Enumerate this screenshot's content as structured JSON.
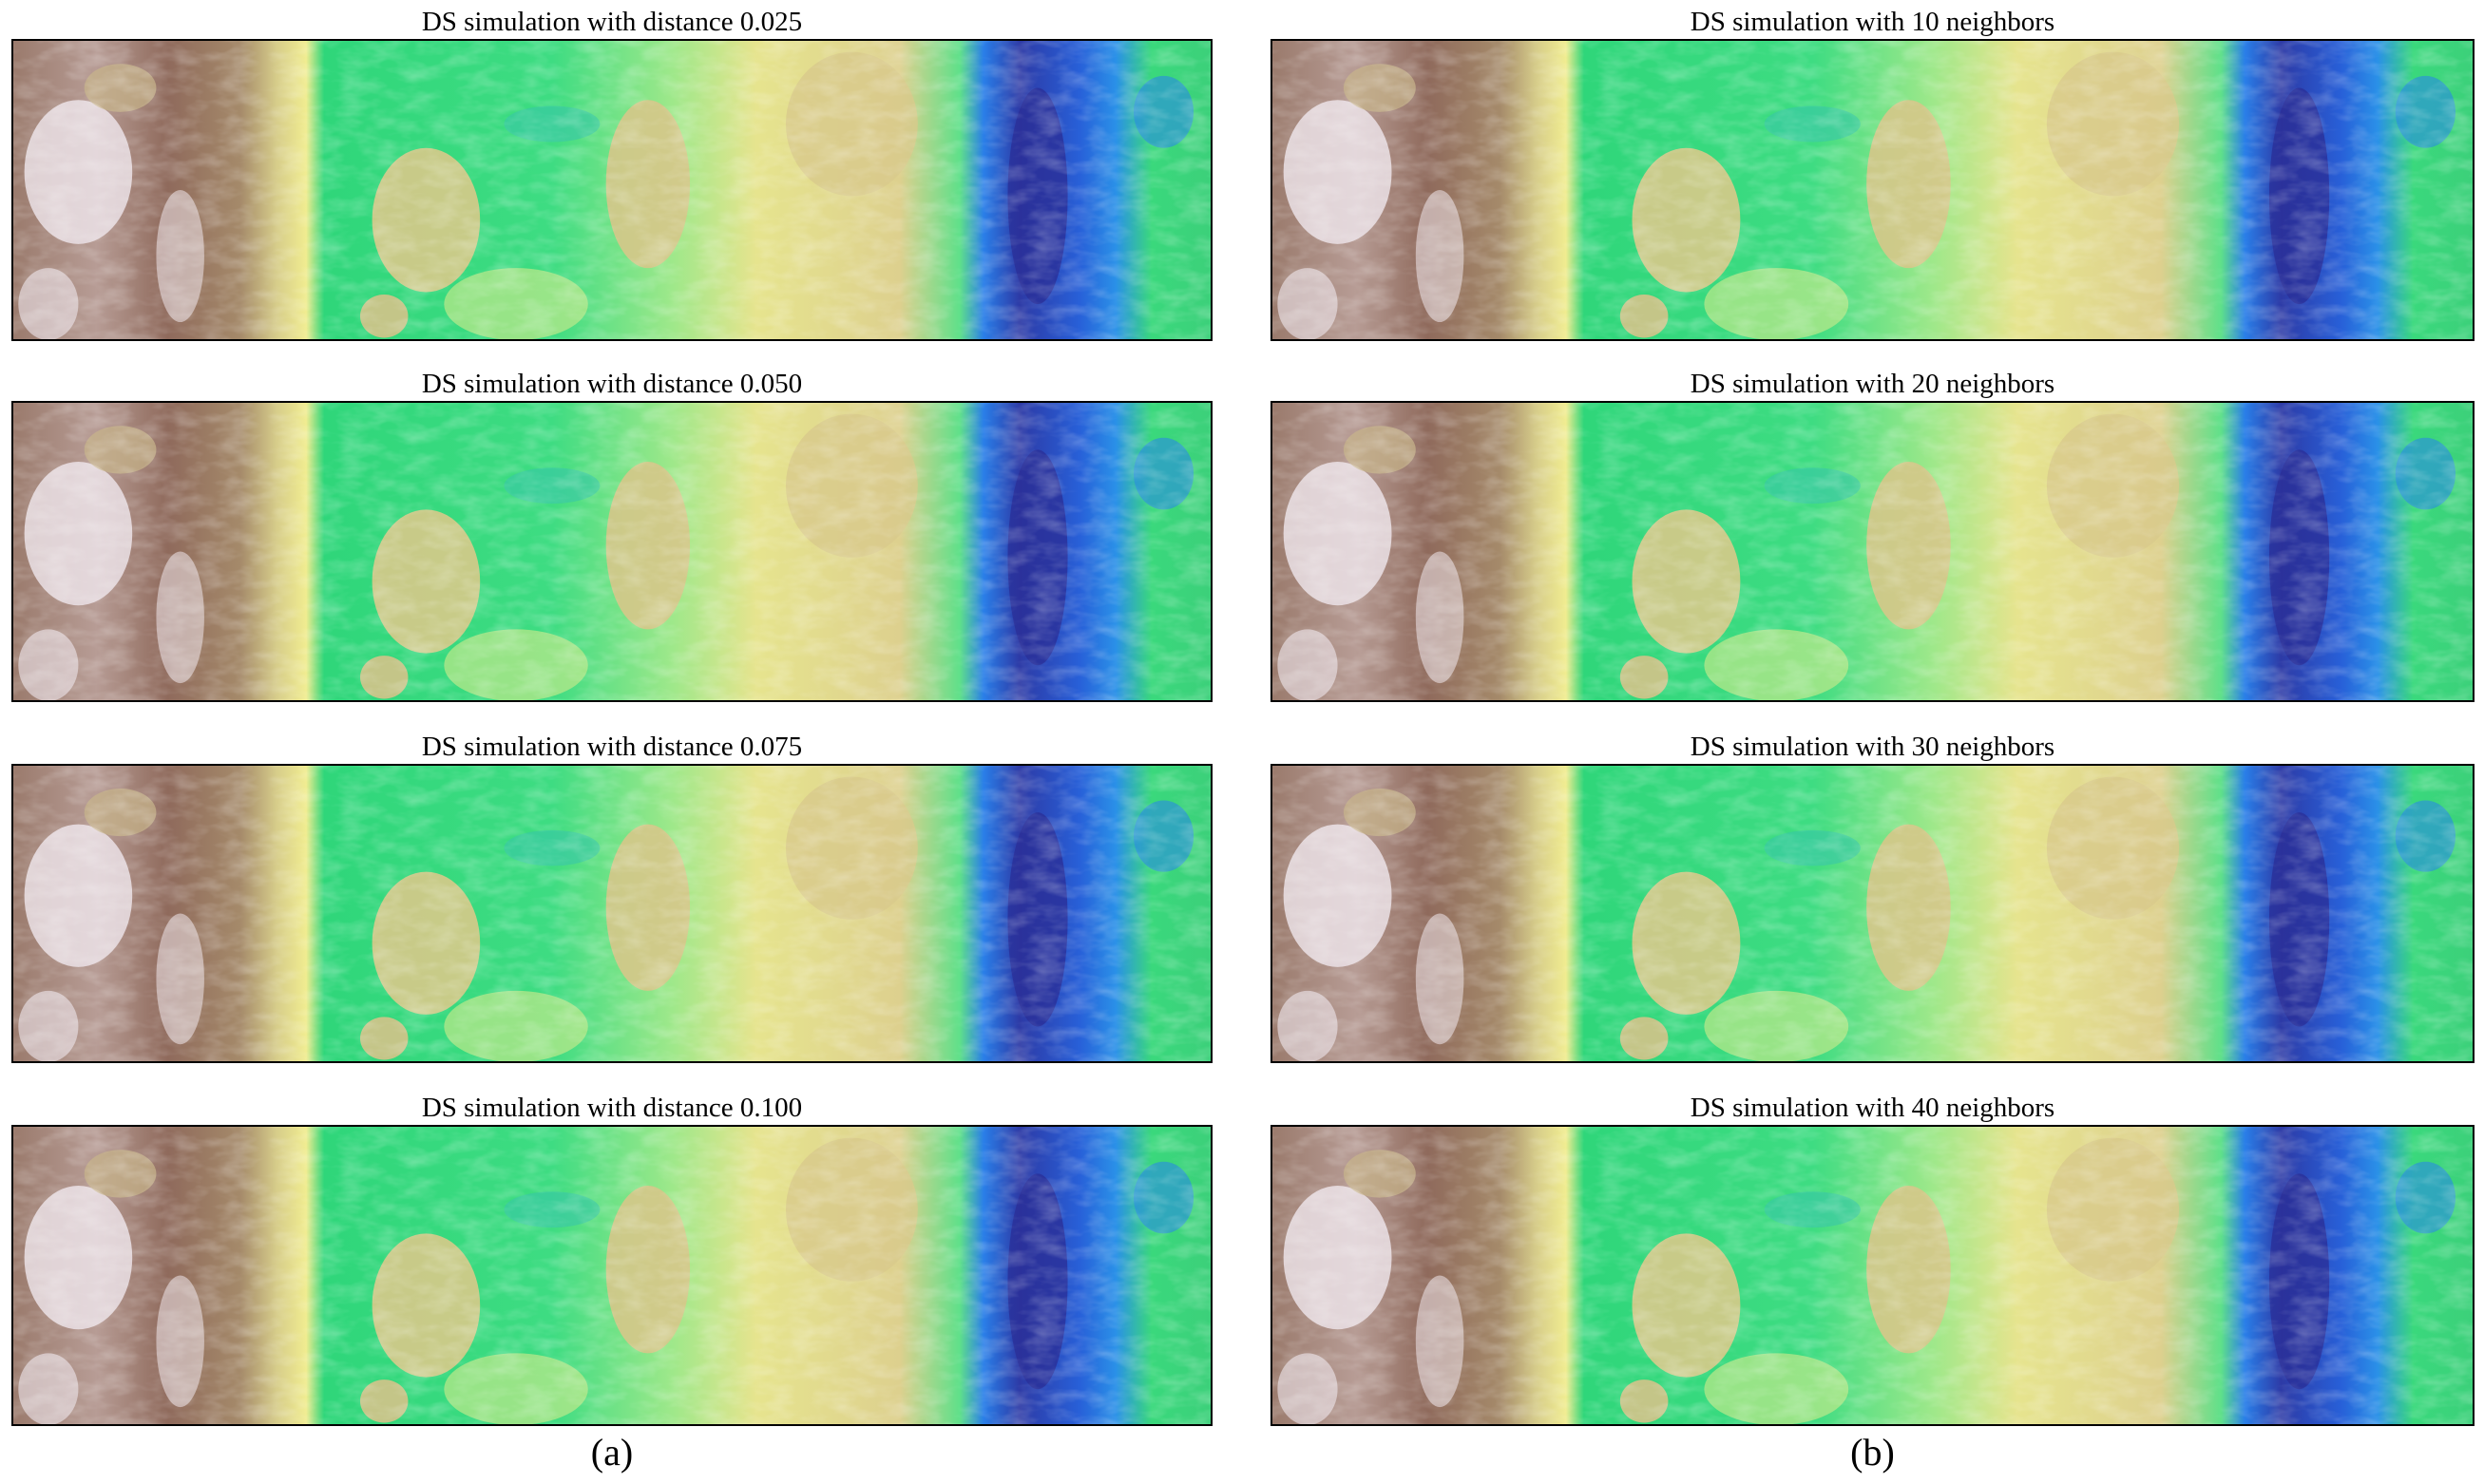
{
  "columns": [
    {
      "caption": "(a)",
      "panels": [
        {
          "title": "DS simulation with distance 0.025"
        },
        {
          "title": "DS simulation with distance 0.050"
        },
        {
          "title": "DS simulation with distance 0.075"
        },
        {
          "title": "DS simulation with distance 0.100"
        }
      ]
    },
    {
      "caption": "(b)",
      "panels": [
        {
          "title": "DS simulation with 10 neighbors"
        },
        {
          "title": "DS simulation with 20 neighbors"
        },
        {
          "title": "DS simulation with 30 neighbors"
        },
        {
          "title": "DS simulation with 40 neighbors"
        }
      ]
    }
  ]
}
